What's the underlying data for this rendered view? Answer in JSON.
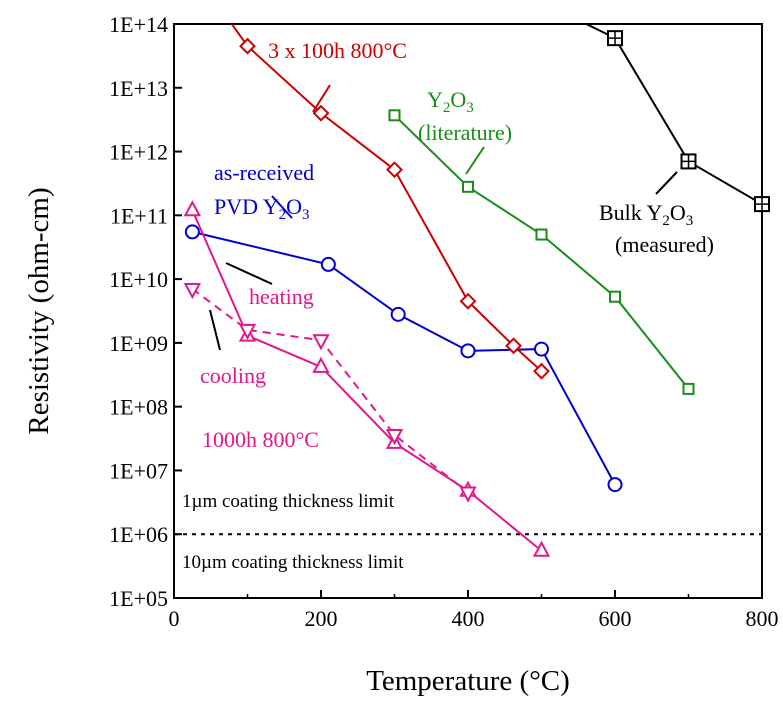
{
  "chart_data": {
    "type": "line",
    "xlabel": "Temperature (°C)",
    "ylabel": "Resistivity  (ohm-cm)",
    "xlim": [
      0,
      800
    ],
    "ylim_log10": [
      5,
      14
    ],
    "y_scale": "log",
    "x_ticks": [
      "0",
      "200",
      "400",
      "600",
      "800"
    ],
    "y_ticks": [
      "1E+05",
      "1E+06",
      "1E+07",
      "1E+08",
      "1E+09",
      "1E+10",
      "1E+11",
      "1E+12",
      "1E+13",
      "1E+14"
    ],
    "grid": false,
    "series": [
      {
        "key": "bulk",
        "color": "#000000",
        "marker": "square-plus",
        "dashed": false,
        "x": [
          600,
          700,
          800
        ],
        "y": [
          60000000000000.0,
          700000000000.0,
          150000000000.0
        ]
      },
      {
        "key": "lit",
        "color": "#1a8c1a",
        "marker": "square",
        "dashed": false,
        "x": [
          300,
          400,
          500,
          600,
          700
        ],
        "y": [
          3700000000000.0,
          280000000000.0,
          50000000000.0,
          5300000000.0,
          190000000.0
        ]
      },
      {
        "key": "pvd",
        "color": "#0000cc",
        "marker": "circle",
        "dashed": false,
        "x": [
          25,
          210,
          305,
          400,
          500,
          600
        ],
        "y": [
          55000000000.0,
          17000000000.0,
          2800000000.0,
          750000000.0,
          800000000.0,
          6000000.0
        ]
      },
      {
        "key": "h3x100",
        "color": "#cc0000",
        "marker": "diamond",
        "dashed": false,
        "x": [
          100,
          200,
          300,
          400,
          462,
          500
        ],
        "y": [
          45000000000000.0,
          4000000000000.0,
          520000000000.0,
          4500000000.0,
          900000000.0,
          360000000.0
        ]
      },
      {
        "key": "heating",
        "color": "#e0188c",
        "marker": "triangle-up",
        "dashed": false,
        "x": [
          25,
          100,
          200,
          300,
          400,
          500
        ],
        "y": [
          120000000000.0,
          1300000000.0,
          420000000.0,
          27000000.0,
          4800000.0,
          550000.0
        ]
      },
      {
        "key": "cooling",
        "color": "#e0188c",
        "marker": "triangle-down",
        "dashed": true,
        "x": [
          25,
          100,
          200,
          300,
          400
        ],
        "y": [
          7000000000.0,
          1600000000.0,
          1100000000.0,
          36000000.0,
          4500000.0
        ]
      }
    ],
    "limit_lines": [
      {
        "label": "1µm coating thickness limit",
        "y": 1000000.0
      },
      {
        "label": "10µm coating thickness limit",
        "y": 100000.0
      }
    ],
    "annotations": {
      "h3x100": "3 x 100h 800°C",
      "lit_line1": "(literature)",
      "pvd_line1": "as-received",
      "pvd_prefix": "PVD",
      "bulk_prefix": "Bulk",
      "bulk_line2": "(measured)",
      "heating": "heating",
      "cooling": "cooling",
      "h1000": "1000h 800°C",
      "formula": {
        "a": "Y",
        "b": "2",
        "c": "O",
        "d": "3"
      }
    }
  }
}
